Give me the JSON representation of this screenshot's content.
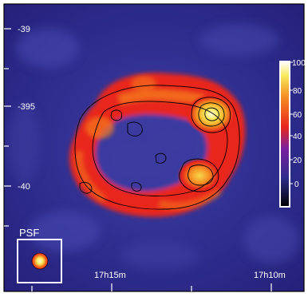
{
  "image": {
    "description_type": "astronomical intensity map (false-colour) with contour overlay",
    "colormap": "blue-red-yellow-white",
    "colors": {
      "background_low": "#25207a",
      "background_mid": "#3b3aa0",
      "ring_red": "#e8261c",
      "ring_orange": "#f57a1f",
      "peak_yellow": "#f7e85a",
      "contour": "#000000",
      "frame": "#ffffff"
    }
  },
  "axes": {
    "y_ticks": [
      "-39",
      "-395",
      "-40"
    ],
    "x_ticks": [
      "17h15m",
      "17h10m"
    ]
  },
  "colorbar": {
    "ticks": [
      "100",
      "80",
      "60",
      "40",
      "20",
      "0"
    ],
    "range": [
      0,
      100
    ]
  },
  "psf_inset": {
    "label": "PSF"
  }
}
